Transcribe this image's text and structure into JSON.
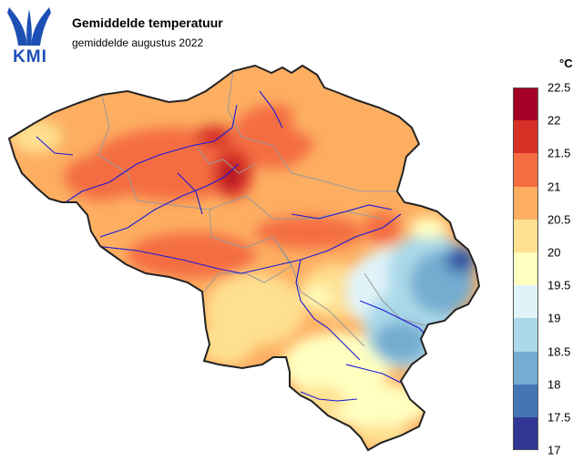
{
  "header": {
    "logo_text": "KMI",
    "title": "Gemiddelde temperatuur",
    "subtitle": "gemiddelde augustus 2022"
  },
  "legend": {
    "unit": "°C",
    "ticks": [
      "22.5",
      "22",
      "21.5",
      "21",
      "20.5",
      "20",
      "19.5",
      "19",
      "18.5",
      "18",
      "17.5",
      "17"
    ],
    "colors": [
      "#a50026",
      "#d73027",
      "#f46d43",
      "#fdae61",
      "#fee090",
      "#ffffbf",
      "#e0f3f8",
      "#abd9e9",
      "#74add1",
      "#4575b4",
      "#313695"
    ]
  },
  "colors": {
    "logo_blue": "#1d4fb5",
    "river": "#1a1ad6",
    "province_border": "#9a9a9a",
    "country_border": "#222222"
  }
}
